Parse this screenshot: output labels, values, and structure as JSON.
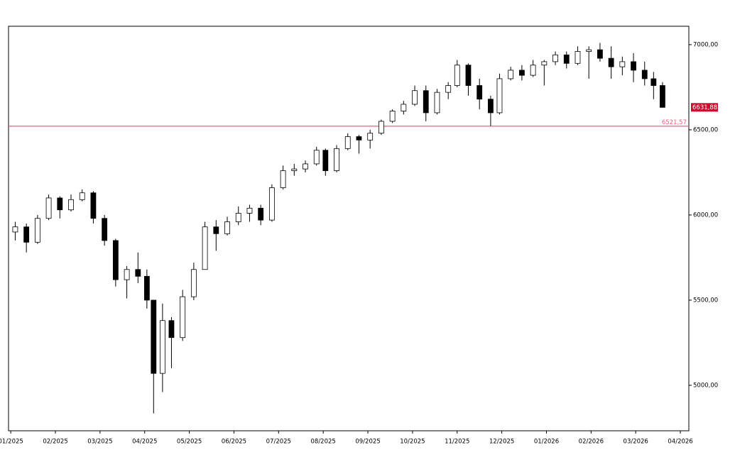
{
  "chart_data": {
    "type": "candlestick",
    "x": [
      0.1,
      0.35,
      0.6,
      0.85,
      1.1,
      1.35,
      1.6,
      1.85,
      2.1,
      2.35,
      2.6,
      2.85,
      3.05,
      3.2,
      3.4,
      3.6,
      3.85,
      4.1,
      4.35,
      4.6,
      4.85,
      5.1,
      5.35,
      5.6,
      5.85,
      6.1,
      6.35,
      6.6,
      6.85,
      7.05,
      7.3,
      7.55,
      7.8,
      8.05,
      8.3,
      8.55,
      8.8,
      9.05,
      9.3,
      9.55,
      9.8,
      10.0,
      10.25,
      10.5,
      10.75,
      10.95,
      11.2,
      11.45,
      11.7,
      11.95,
      12.2,
      12.45,
      12.7,
      12.95,
      13.2,
      13.45,
      13.7,
      13.95,
      14.2,
      14.4,
      14.6
    ],
    "open": [
      5900,
      5930,
      5840,
      5980,
      6100,
      6030,
      6090,
      6130,
      5980,
      5850,
      5620,
      5680,
      5640,
      5500,
      5070,
      5380,
      5280,
      5520,
      5680,
      5930,
      5890,
      5960,
      6010,
      6040,
      5970,
      6160,
      6260,
      6270,
      6300,
      6380,
      6260,
      6390,
      6460,
      6440,
      6480,
      6550,
      6610,
      6650,
      6730,
      6600,
      6720,
      6760,
      6880,
      6760,
      6680,
      6600,
      6800,
      6850,
      6820,
      6880,
      6900,
      6940,
      6890,
      6960,
      6970,
      6920,
      6870,
      6900,
      6850,
      6800,
      6760
    ],
    "high": [
      5960,
      5950,
      6000,
      6120,
      6110,
      6120,
      6150,
      6140,
      6000,
      5860,
      5700,
      5780,
      5680,
      5500,
      5480,
      5400,
      5560,
      5720,
      5960,
      5970,
      5990,
      6050,
      6060,
      6060,
      6180,
      6290,
      6300,
      6320,
      6400,
      6390,
      6410,
      6480,
      6470,
      6500,
      6560,
      6620,
      6670,
      6760,
      6760,
      6740,
      6780,
      6910,
      6890,
      6800,
      6700,
      6830,
      6870,
      6880,
      6910,
      6910,
      6960,
      6960,
      6990,
      6990,
      7010,
      6990,
      6930,
      6950,
      6900,
      6840,
      6780
    ],
    "low": [
      5850,
      5780,
      5830,
      5970,
      5980,
      6020,
      6080,
      5950,
      5820,
      5580,
      5510,
      5600,
      5450,
      4835,
      4960,
      5100,
      5260,
      5500,
      5680,
      5790,
      5880,
      5940,
      5960,
      5940,
      5960,
      6150,
      6230,
      6250,
      6290,
      6230,
      6250,
      6380,
      6360,
      6390,
      6470,
      6540,
      6590,
      6640,
      6550,
      6590,
      6680,
      6750,
      6700,
      6620,
      6522,
      6590,
      6790,
      6790,
      6810,
      6760,
      6880,
      6860,
      6880,
      6800,
      6900,
      6800,
      6820,
      6780,
      6760,
      6680,
      6630
    ],
    "close": [
      5930,
      5840,
      5980,
      6100,
      6030,
      6090,
      6130,
      5980,
      5850,
      5620,
      5680,
      5640,
      5500,
      5070,
      5380,
      5280,
      5520,
      5680,
      5930,
      5890,
      5960,
      6010,
      6040,
      5970,
      6160,
      6260,
      6270,
      6300,
      6380,
      6260,
      6390,
      6460,
      6440,
      6480,
      6550,
      6610,
      6650,
      6730,
      6600,
      6720,
      6760,
      6880,
      6760,
      6680,
      6600,
      6800,
      6850,
      6820,
      6880,
      6900,
      6940,
      6890,
      6960,
      6970,
      6920,
      6870,
      6900,
      6850,
      6800,
      6760,
      6631.88
    ],
    "xlim": [
      -0.05,
      15.19
    ],
    "xticks": [
      {
        "value": 0,
        "label": "01/2025"
      },
      {
        "value": 1,
        "label": "02/2025"
      },
      {
        "value": 2,
        "label": "03/2025"
      },
      {
        "value": 3,
        "label": "04/2025"
      },
      {
        "value": 4,
        "label": "05/2025"
      },
      {
        "value": 5,
        "label": "06/2025"
      },
      {
        "value": 6,
        "label": "07/2025"
      },
      {
        "value": 7,
        "label": "08/2025"
      },
      {
        "value": 8,
        "label": "09/2025"
      },
      {
        "value": 9,
        "label": "10/2025"
      },
      {
        "value": 10,
        "label": "11/2025"
      },
      {
        "value": 11,
        "label": "12/2025"
      },
      {
        "value": 12,
        "label": "01/2026"
      },
      {
        "value": 13,
        "label": "02/2026"
      },
      {
        "value": 14,
        "label": "03/2026"
      },
      {
        "value": 15,
        "label": "04/2026"
      }
    ],
    "ylim": [
      4733,
      7108
    ],
    "yticks": [
      {
        "value": 5000,
        "label": "5000,00"
      },
      {
        "value": 5500,
        "label": "5500,00"
      },
      {
        "value": 6000,
        "label": "6000,00"
      },
      {
        "value": 6500,
        "label": "6500,00"
      },
      {
        "value": 7000,
        "label": "7000,00"
      }
    ],
    "last_price": {
      "value": 6631.88,
      "label": "6631,88",
      "color": "#c8102e"
    },
    "hline": {
      "value": 6521.57,
      "label": "6521,57",
      "color": "#ff5a7a"
    },
    "up_color": "#ffffff",
    "down_color": "#000000"
  }
}
